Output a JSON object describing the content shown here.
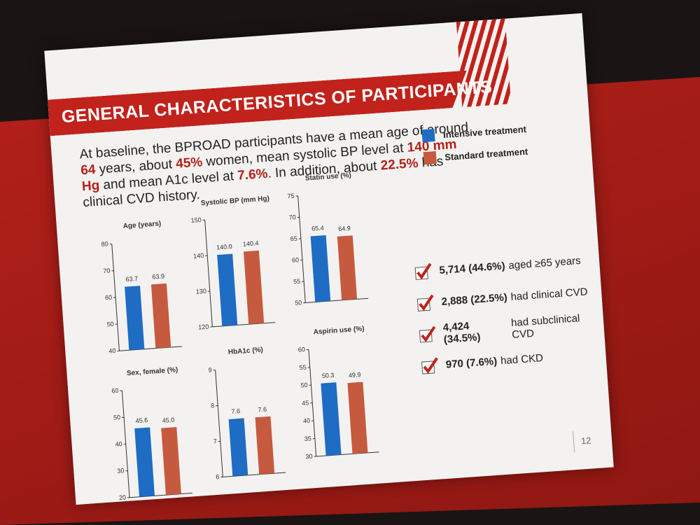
{
  "header": {
    "title": "GENERAL CHARACTERISTICS OF PARTICIPANTS"
  },
  "intro": [
    {
      "text": "At baseline, the BPROAD participants have a mean age of around ",
      "emphasis": false
    },
    {
      "text": "64",
      "emphasis": true
    },
    {
      "text": " years, about ",
      "emphasis": false
    },
    {
      "text": "45%",
      "emphasis": true
    },
    {
      "text": " women, mean systolic BP level at ",
      "emphasis": false
    },
    {
      "text": "140 mm Hg",
      "emphasis": true
    },
    {
      "text": " and mean A1c level at ",
      "emphasis": false
    },
    {
      "text": "7.6%",
      "emphasis": true
    },
    {
      "text": ". In addition, about ",
      "emphasis": false
    },
    {
      "text": "22.5%",
      "emphasis": true
    },
    {
      "text": " has clinical CVD history.",
      "emphasis": false
    }
  ],
  "legend": [
    {
      "name": "Intensive treatment",
      "color": "#1f6cc4"
    },
    {
      "name": "Standard treatment",
      "color": "#c65a3f"
    }
  ],
  "chart_data": [
    {
      "type": "bar",
      "title": "Age (years)",
      "values": [
        63.7,
        63.9
      ],
      "ylim": [
        40,
        80
      ],
      "yticks": [
        40,
        50,
        60,
        70,
        80
      ]
    },
    {
      "type": "bar",
      "title": "Systolic BP (mm Hg)",
      "values": [
        140.0,
        140.4
      ],
      "value_labels": [
        "140.0",
        "140.4"
      ],
      "ylim": [
        120,
        150
      ],
      "yticks": [
        120,
        130,
        140,
        150
      ]
    },
    {
      "type": "bar",
      "title": "Statin use (%)",
      "values": [
        65.4,
        64.9
      ],
      "ylim": [
        50,
        75
      ],
      "yticks": [
        50,
        55,
        60,
        65,
        70,
        75
      ]
    },
    {
      "type": "bar",
      "title": "Sex, female (%)",
      "values": [
        45.6,
        45.0
      ],
      "value_labels": [
        "45.6",
        "45.0"
      ],
      "ylim": [
        20,
        60
      ],
      "yticks": [
        20,
        30,
        40,
        50,
        60
      ]
    },
    {
      "type": "bar",
      "title": "HbA1c (%)",
      "values": [
        7.6,
        7.6
      ],
      "ylim": [
        6,
        9
      ],
      "yticks": [
        6,
        7,
        8,
        9
      ]
    },
    {
      "type": "bar",
      "title": "Aspirin use (%)",
      "values": [
        50.3,
        49.9
      ],
      "ylim": [
        30,
        60
      ],
      "yticks": [
        30,
        35,
        40,
        45,
        50,
        55,
        60
      ]
    }
  ],
  "checklist": [
    {
      "count": "5,714 (44.6%)",
      "text": "aged ≥65 years"
    },
    {
      "count": "2,888 (22.5%)",
      "text": "had clinical CVD"
    },
    {
      "count": "4,424 (34.5%)",
      "text": "had subclinical CVD"
    },
    {
      "count": "970 (7.6%)",
      "text": "had CKD"
    }
  ],
  "page_number": "12"
}
